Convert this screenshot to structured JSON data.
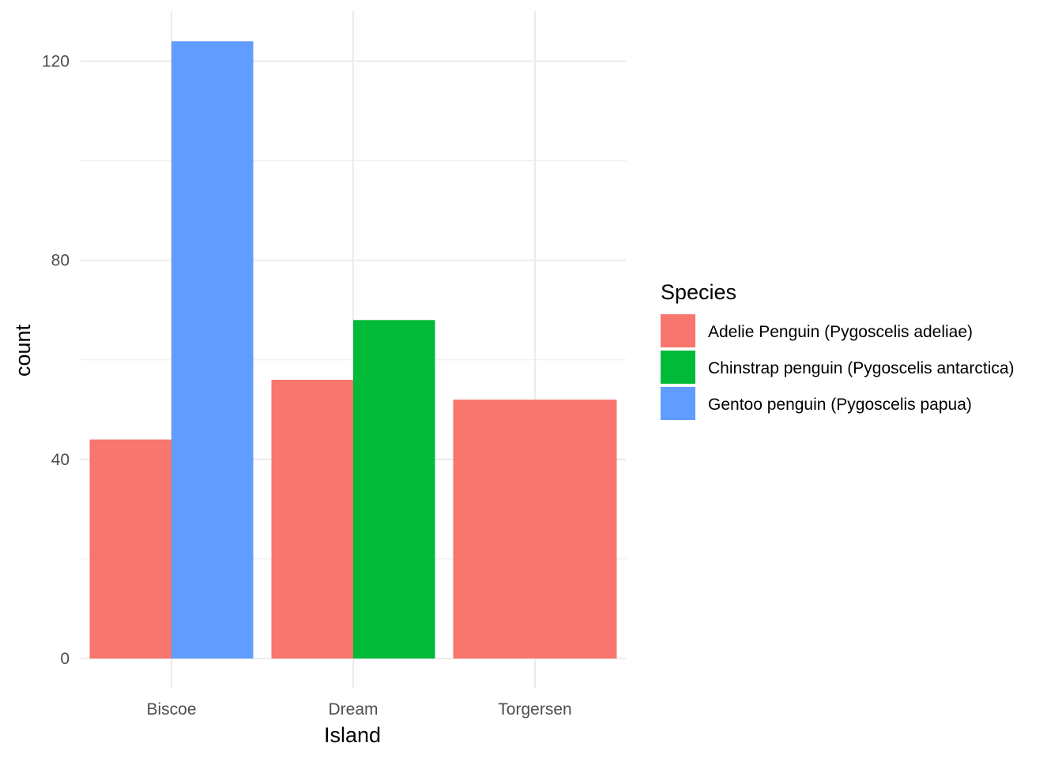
{
  "chart_data": {
    "type": "bar",
    "position": "dodge",
    "title": "",
    "xlabel": "Island",
    "ylabel": "count",
    "categories": [
      "Biscoe",
      "Dream",
      "Torgersen"
    ],
    "ylim": [
      0,
      130
    ],
    "yticks": [
      0,
      40,
      80,
      120
    ],
    "grid": true,
    "legend": {
      "title": "Species",
      "placement": "right",
      "entries": [
        "Adelie Penguin (Pygoscelis adeliae)",
        "Chinstrap penguin (Pygoscelis antarctica)",
        "Gentoo penguin (Pygoscelis papua)"
      ]
    },
    "series": [
      {
        "name": "Adelie Penguin (Pygoscelis adeliae)",
        "color": "#F8766D",
        "values": [
          44,
          56,
          52
        ]
      },
      {
        "name": "Chinstrap penguin (Pygoscelis antarctica)",
        "color": "#00BA38",
        "values": [
          null,
          68,
          null
        ]
      },
      {
        "name": "Gentoo penguin (Pygoscelis papua)",
        "color": "#619CFF",
        "values": [
          124,
          null,
          null
        ]
      }
    ]
  }
}
